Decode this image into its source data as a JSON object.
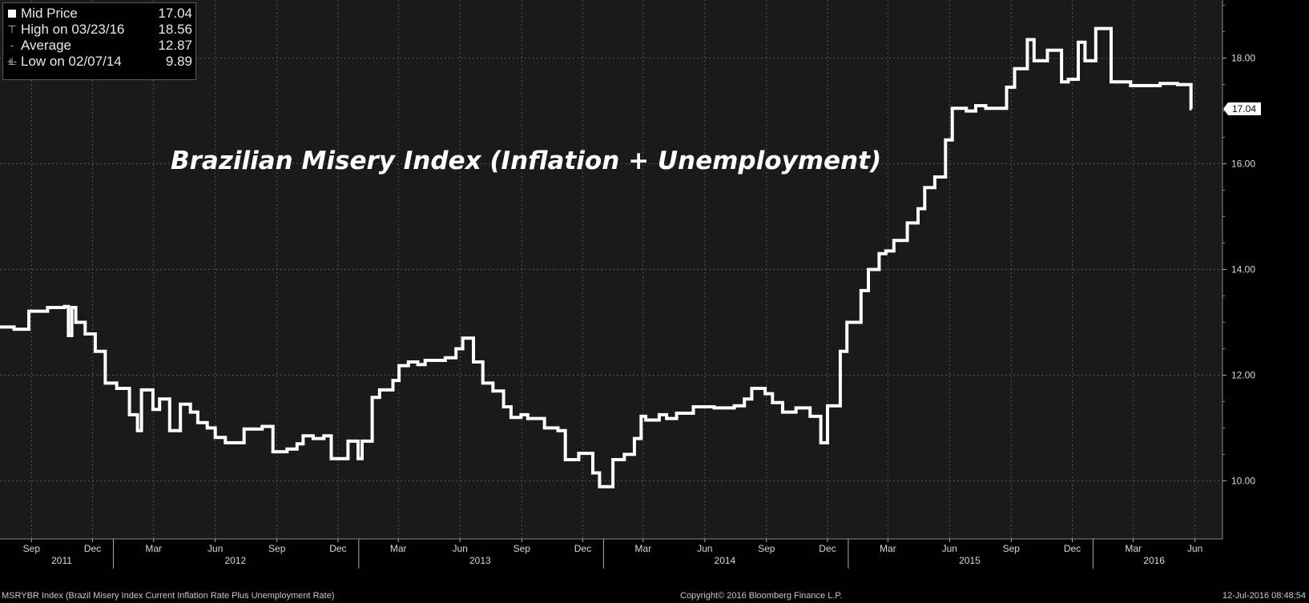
{
  "legend": {
    "mid_label": "Mid Price",
    "mid_value": "17.04",
    "high_label": "High on 03/23/16",
    "high_value": "18.56",
    "avg_label": "Average",
    "avg_value": "12.87",
    "low_label": "Low on 02/07/14",
    "low_value": "9.89"
  },
  "title": "Brazilian Misery Index (Inflation + Unemployment)",
  "last_value_label": "17.04",
  "footer": {
    "left": "MSRYBR Index (Brazil Misery Index Current Inflation Rate Plus Unemployment Rate)",
    "center": "Copyright© 2016 Bloomberg Finance L.P.",
    "right": "12-Jul-2016 08:48:54"
  },
  "colors": {
    "background": "#1a1a1a",
    "line": "#ffffff",
    "grid": "#555555"
  },
  "chart_data": {
    "type": "line",
    "title": "Brazilian Misery Index (Inflation + Unemployment)",
    "x_range": [
      "2011-07-16",
      "2016-07-12"
    ],
    "ylim": [
      8.9,
      19.1
    ],
    "y_ticks": [
      10.0,
      12.0,
      14.0,
      16.0,
      18.0
    ],
    "y_tick_labels": [
      "10.00",
      "12.00",
      "14.00",
      "16.00",
      "18.00"
    ],
    "month_ticks": [
      {
        "date": "2011-09-01",
        "label": "Sep"
      },
      {
        "date": "2011-12-01",
        "label": "Dec"
      },
      {
        "date": "2012-03-01",
        "label": "Mar"
      },
      {
        "date": "2012-06-01",
        "label": "Jun"
      },
      {
        "date": "2012-09-01",
        "label": "Sep"
      },
      {
        "date": "2012-12-01",
        "label": "Dec"
      },
      {
        "date": "2013-03-01",
        "label": "Mar"
      },
      {
        "date": "2013-06-01",
        "label": "Jun"
      },
      {
        "date": "2013-09-01",
        "label": "Sep"
      },
      {
        "date": "2013-12-01",
        "label": "Dec"
      },
      {
        "date": "2014-03-01",
        "label": "Mar"
      },
      {
        "date": "2014-06-01",
        "label": "Jun"
      },
      {
        "date": "2014-09-01",
        "label": "Sep"
      },
      {
        "date": "2014-12-01",
        "label": "Dec"
      },
      {
        "date": "2015-03-01",
        "label": "Mar"
      },
      {
        "date": "2015-06-01",
        "label": "Jun"
      },
      {
        "date": "2015-09-01",
        "label": "Sep"
      },
      {
        "date": "2015-12-01",
        "label": "Dec"
      },
      {
        "date": "2016-03-01",
        "label": "Mar"
      },
      {
        "date": "2016-06-01",
        "label": "Jun"
      }
    ],
    "year_labels": [
      {
        "date": "2011-10-16",
        "label": "2011"
      },
      {
        "date": "2012-07-01",
        "label": "2012"
      },
      {
        "date": "2013-07-01",
        "label": "2013"
      },
      {
        "date": "2014-07-01",
        "label": "2014"
      },
      {
        "date": "2015-07-01",
        "label": "2015"
      },
      {
        "date": "2016-04-01",
        "label": "2016"
      }
    ],
    "year_boundaries": [
      "2012-01-01",
      "2013-01-01",
      "2014-01-01",
      "2015-01-01",
      "2016-01-01"
    ],
    "grid": true,
    "legend_position": "top-left",
    "series": [
      {
        "name": "Mid Price",
        "points": [
          [
            "2011-07-16",
            12.91
          ],
          [
            "2011-08-06",
            12.87
          ],
          [
            "2011-08-28",
            13.21
          ],
          [
            "2011-09-25",
            13.28
          ],
          [
            "2011-10-20",
            13.3
          ],
          [
            "2011-10-26",
            12.75
          ],
          [
            "2011-10-31",
            13.28
          ],
          [
            "2011-11-06",
            13.0
          ],
          [
            "2011-11-20",
            12.78
          ],
          [
            "2011-12-05",
            12.45
          ],
          [
            "2011-12-20",
            11.85
          ],
          [
            "2012-01-06",
            11.75
          ],
          [
            "2012-01-25",
            11.25
          ],
          [
            "2012-02-06",
            10.95
          ],
          [
            "2012-02-12",
            11.72
          ],
          [
            "2012-02-29",
            11.35
          ],
          [
            "2012-03-10",
            11.55
          ],
          [
            "2012-03-25",
            10.95
          ],
          [
            "2012-04-10",
            11.45
          ],
          [
            "2012-04-25",
            11.3
          ],
          [
            "2012-05-06",
            11.1
          ],
          [
            "2012-05-20",
            11.0
          ],
          [
            "2012-06-01",
            10.82
          ],
          [
            "2012-06-16",
            10.72
          ],
          [
            "2012-07-14",
            10.98
          ],
          [
            "2012-08-10",
            11.03
          ],
          [
            "2012-08-26",
            10.55
          ],
          [
            "2012-09-16",
            10.6
          ],
          [
            "2012-10-01",
            10.7
          ],
          [
            "2012-10-10",
            10.85
          ],
          [
            "2012-10-25",
            10.8
          ],
          [
            "2012-11-10",
            10.85
          ],
          [
            "2012-11-21",
            10.42
          ],
          [
            "2012-12-16",
            10.75
          ],
          [
            "2012-12-31",
            10.42
          ],
          [
            "2013-01-06",
            10.75
          ],
          [
            "2013-01-21",
            11.58
          ],
          [
            "2013-02-01",
            11.72
          ],
          [
            "2013-02-21",
            11.9
          ],
          [
            "2013-03-02",
            12.18
          ],
          [
            "2013-03-16",
            12.25
          ],
          [
            "2013-03-30",
            12.2
          ],
          [
            "2013-04-10",
            12.28
          ],
          [
            "2013-05-10",
            12.33
          ],
          [
            "2013-05-26",
            12.5
          ],
          [
            "2013-06-05",
            12.7
          ],
          [
            "2013-06-21",
            12.25
          ],
          [
            "2013-07-05",
            11.85
          ],
          [
            "2013-07-20",
            11.7
          ],
          [
            "2013-08-05",
            11.4
          ],
          [
            "2013-08-16",
            11.2
          ],
          [
            "2013-08-31",
            11.25
          ],
          [
            "2013-09-10",
            11.18
          ],
          [
            "2013-10-05",
            11.0
          ],
          [
            "2013-10-25",
            10.95
          ],
          [
            "2013-11-05",
            10.4
          ],
          [
            "2013-11-25",
            10.52
          ],
          [
            "2013-12-16",
            10.15
          ],
          [
            "2013-12-26",
            9.89
          ],
          [
            "2014-01-15",
            10.4
          ],
          [
            "2014-02-01",
            10.5
          ],
          [
            "2014-02-16",
            10.8
          ],
          [
            "2014-02-26",
            11.22
          ],
          [
            "2014-03-05",
            11.15
          ],
          [
            "2014-03-25",
            11.25
          ],
          [
            "2014-04-05",
            11.18
          ],
          [
            "2014-04-20",
            11.28
          ],
          [
            "2014-05-15",
            11.4
          ],
          [
            "2014-06-15",
            11.38
          ],
          [
            "2014-07-15",
            11.42
          ],
          [
            "2014-07-30",
            11.55
          ],
          [
            "2014-08-10",
            11.75
          ],
          [
            "2014-08-30",
            11.65
          ],
          [
            "2014-09-10",
            11.48
          ],
          [
            "2014-09-25",
            11.3
          ],
          [
            "2014-10-15",
            11.38
          ],
          [
            "2014-11-05",
            11.22
          ],
          [
            "2014-11-21",
            10.72
          ],
          [
            "2014-12-01",
            11.42
          ],
          [
            "2014-12-20",
            12.45
          ],
          [
            "2014-12-30",
            13.0
          ],
          [
            "2015-01-20",
            13.6
          ],
          [
            "2015-01-31",
            14.0
          ],
          [
            "2015-02-16",
            14.3
          ],
          [
            "2015-02-26",
            14.35
          ],
          [
            "2015-03-10",
            14.55
          ],
          [
            "2015-03-30",
            14.88
          ],
          [
            "2015-04-15",
            15.15
          ],
          [
            "2015-04-25",
            15.55
          ],
          [
            "2015-05-10",
            15.75
          ],
          [
            "2015-05-26",
            16.45
          ],
          [
            "2015-06-05",
            17.05
          ],
          [
            "2015-06-26",
            17.0
          ],
          [
            "2015-07-10",
            17.1
          ],
          [
            "2015-07-25",
            17.05
          ],
          [
            "2015-08-25",
            17.45
          ],
          [
            "2015-09-06",
            17.8
          ],
          [
            "2015-09-25",
            18.35
          ],
          [
            "2015-10-05",
            17.95
          ],
          [
            "2015-10-25",
            18.15
          ],
          [
            "2015-11-15",
            17.55
          ],
          [
            "2015-11-25",
            17.6
          ],
          [
            "2015-12-10",
            18.3
          ],
          [
            "2015-12-20",
            17.95
          ],
          [
            "2016-01-05",
            18.56
          ],
          [
            "2016-01-28",
            17.55
          ],
          [
            "2016-02-26",
            17.48
          ],
          [
            "2016-04-10",
            17.52
          ],
          [
            "2016-05-06",
            17.5
          ],
          [
            "2016-05-26",
            17.04
          ],
          [
            "2016-05-27",
            17.04
          ]
        ]
      }
    ]
  }
}
